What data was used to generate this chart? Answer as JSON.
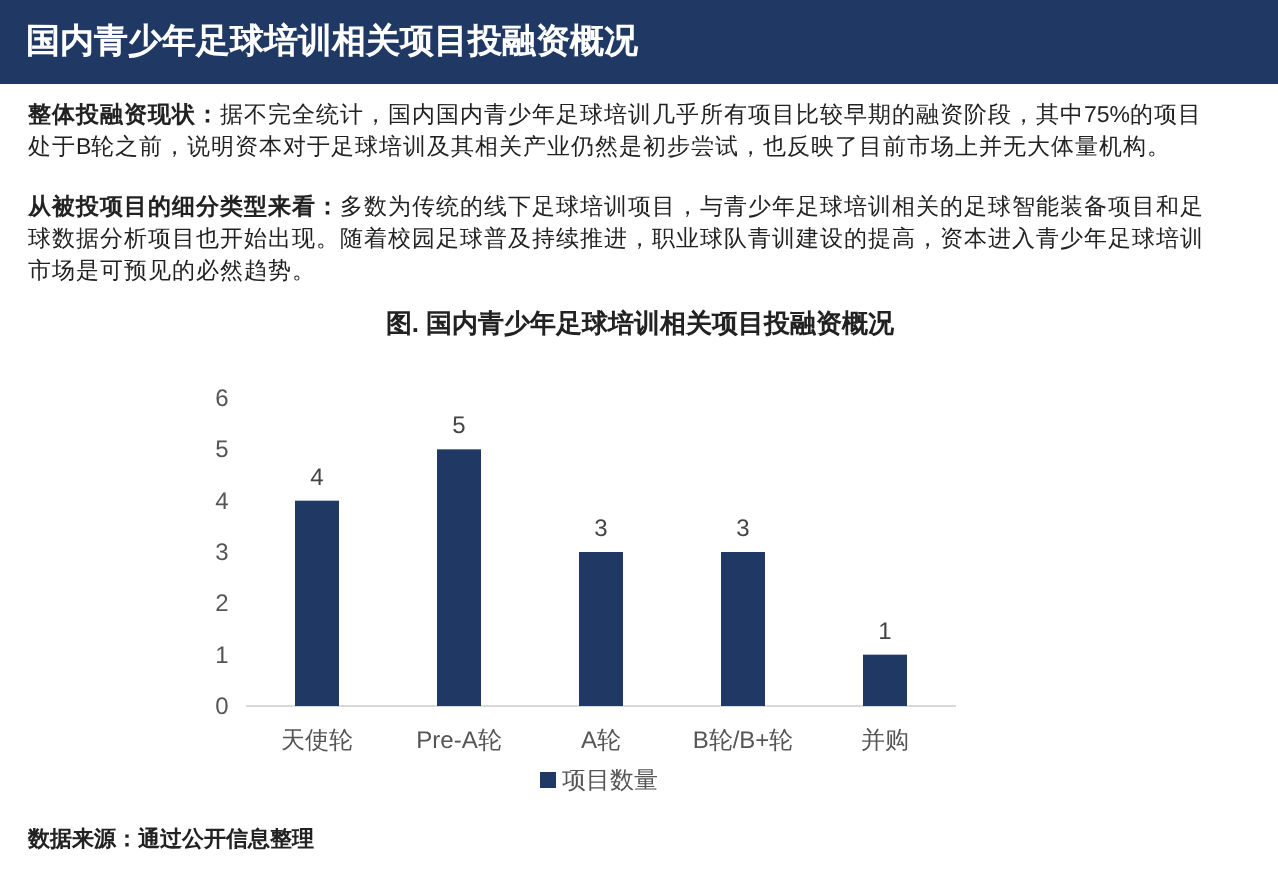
{
  "chart_data": {
    "type": "bar",
    "title": "国内青少年足球培训相关项目投融资概况",
    "subtitle": "图. 国内青少年足球培训相关项目投融资概况",
    "annotations": [
      "**整体投融资现状：**据不完全统计，国内国内青少年足球培训几乎所有项目比较早期的融资阶段，其中75%的项目处于B轮之前，说明资本对于足球培训及其相关产业仍然是初步尝试，也反映了目前市场上并无大体量机构。",
      "**从被投项目的细分类型来看：**多数为传统的线下足球培训项目，与青少年足球培训相关的足球智能装备项目和足球数据分析项目也开始出现。随着校园足球普及持续推进，职业球队青训建设的提高，资本进入青少年足球培训市场是可预见的必然趋势。",
      "数据来源：通过公开信息整理"
    ],
    "categories": [
      "天使轮",
      "Pre-A轮",
      "A轮",
      "B轮/B+轮",
      "并购"
    ],
    "series": [
      {
        "name": "项目数量",
        "color": "#1f3864",
        "values": [
          4,
          5,
          3,
          3,
          1
        ]
      }
    ],
    "ylim": [
      0,
      6
    ],
    "yticks": [
      0,
      1,
      2,
      3,
      4,
      5,
      6
    ],
    "data_labels": true,
    "legend": "bottom",
    "grid": false
  }
}
